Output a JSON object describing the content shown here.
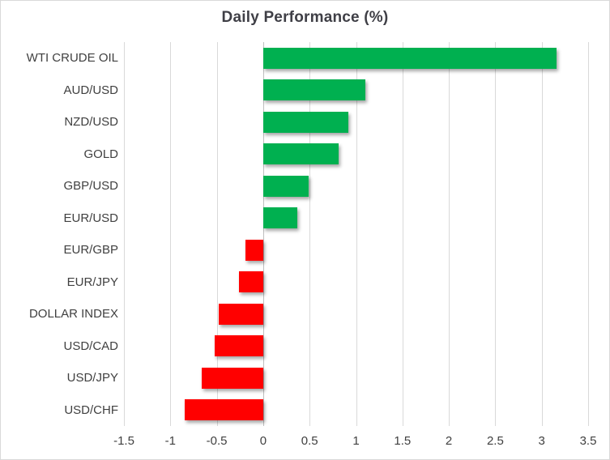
{
  "chart_data": {
    "type": "bar",
    "orientation": "horizontal",
    "title": "Daily Performance (%)",
    "categories": [
      "WTI CRUDE OIL",
      "AUD/USD",
      "NZD/USD",
      "GOLD",
      "GBP/USD",
      "EUR/USD",
      "EUR/GBP",
      "EUR/JPY",
      "DOLLAR INDEX",
      "USD/CAD",
      "USD/JPY",
      "USD/CHF"
    ],
    "values": [
      3.16,
      1.1,
      0.92,
      0.81,
      0.49,
      0.37,
      -0.19,
      -0.26,
      -0.48,
      -0.52,
      -0.66,
      -0.85
    ],
    "xlim": [
      -1.5,
      3.5
    ],
    "x_ticks": [
      -1.5,
      -1,
      -0.5,
      0,
      0.5,
      1,
      1.5,
      2,
      2.5,
      3,
      3.5
    ],
    "x_tick_labels": [
      "-1.5",
      "-1",
      "-0.5",
      "0",
      "0.5",
      "1",
      "1.5",
      "2",
      "2.5",
      "3",
      "3.5"
    ],
    "grid": "vertical",
    "legend": "none",
    "colors": {
      "positive": "#00B050",
      "negative": "#FF0000",
      "gridline": "#D9D9D9",
      "zero_axis": "#BFBFBF",
      "text": "#404040",
      "frame_border": "#D9D9D9",
      "background": "#FFFFFF"
    }
  }
}
